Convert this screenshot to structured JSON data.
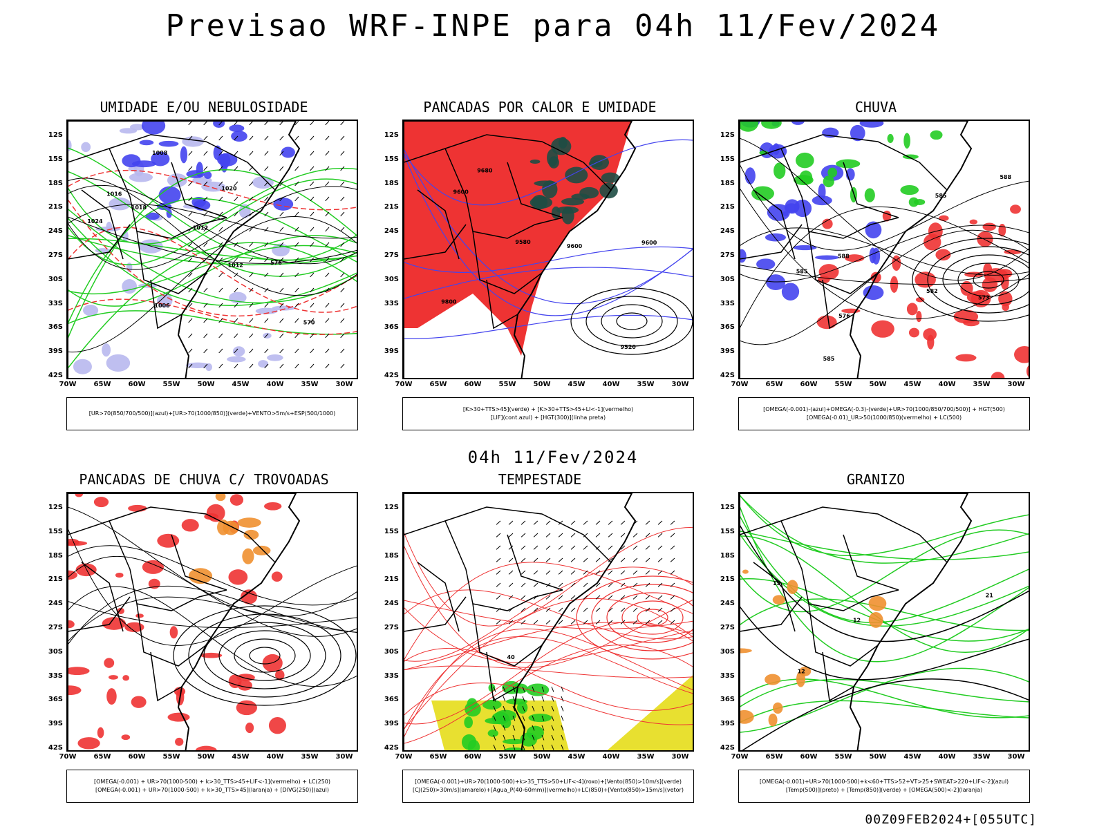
{
  "title": "Previsao WRF-INPE  para 04h 11/Fev/2024",
  "mid_time": "04h 11/Fev/2024",
  "footer": "00Z09FEB2024+[055UTC]",
  "axes": {
    "lat_labels": [
      "12S",
      "15S",
      "18S",
      "21S",
      "24S",
      "27S",
      "30S",
      "33S",
      "36S",
      "39S",
      "42S"
    ],
    "lon_labels": [
      "70W",
      "65W",
      "60W",
      "55W",
      "50W",
      "45W",
      "40W",
      "35W",
      "30W"
    ]
  },
  "colors": {
    "blue": "#4444ee",
    "light_blue": "#b8b8ee",
    "green": "#22cc22",
    "red": "#ee3333",
    "dark_green": "#1e4d44",
    "yellow": "#e8e030",
    "orange": "#f09030",
    "purple": "#aa22cc",
    "black": "#000000"
  },
  "panels": [
    {
      "title": "UMIDADE E/OU NEBULOSIDADE",
      "legend": [
        "[UR>70(850/700/500)](azul)+[UR>70(1000/850)](verde)+VENTO>5m/s+ESP(500/1000)"
      ],
      "labels": [
        "1018",
        "1016",
        "1012",
        "1008",
        "1006",
        "1020",
        "1024",
        "1012",
        "570",
        "576"
      ]
    },
    {
      "title": "PANCADAS POR CALOR E UMIDADE",
      "legend": [
        "[K>30+TTS>45](verde)  +  [K>30+TTS>45+LI<-1](vermelho)",
        "[LIF](cont.azul)  +  [HGT(300)](linha preta)"
      ],
      "labels": [
        "9680",
        "9600",
        "9580",
        "9520",
        "9800",
        "9600",
        "9600"
      ]
    },
    {
      "title": "CHUVA",
      "legend": [
        "[OMEGA(-0.001)-(azul)+OMEGA(-0.3)-(verde)+UR>70(1000/850/700/500)]  +  HGT(500)",
        "[OMEGA(-0.01)_UR>50(1000/850)(vermelho)  +  LC(500)"
      ],
      "labels": [
        "585",
        "582",
        "588",
        "576",
        "573",
        "585",
        "585",
        "588"
      ]
    },
    {
      "title": "PANCADAS DE CHUVA C/ TROVOADAS",
      "legend": [
        "[OMEGA(-0.001)  +  UR>70(1000-500)  +  k>30_TTS>45+LIF<-1](vermelho)  +  LC(250)",
        "[OMEGA(-0.001)  +  UR>70(1000-500)  +  k>30_TTS>45](laranja)  +  [DIVG(250)](azul)"
      ],
      "labels": []
    },
    {
      "title": "TEMPESTADE",
      "legend": [
        "[OMEGA(-0.001)+UR>70(1000-500)+k>35_TTS>50+LIF<-4](roxo)+[Vento(850)>10m/s](verde)",
        "[CJ(250)>30m/s](amarelo)+[Agua_P(40-60mm)](vermelho)+LC(850)+[Vento(850)>15m/s](vetor)"
      ],
      "labels": [
        "40"
      ]
    },
    {
      "title": "GRANIZO",
      "legend": [
        "[OMEGA(-0.001)+UR>70(1000-500)+k<60+TTS>52+VT>25+SWEAT>220+LIF<-2](azul)",
        "[Temp(500)](preto)  +  [Temp(850)](verde)  +  [OMEGA(500)<-2](laranja)"
      ],
      "labels": [
        "12",
        "15",
        "12",
        "21"
      ]
    }
  ]
}
